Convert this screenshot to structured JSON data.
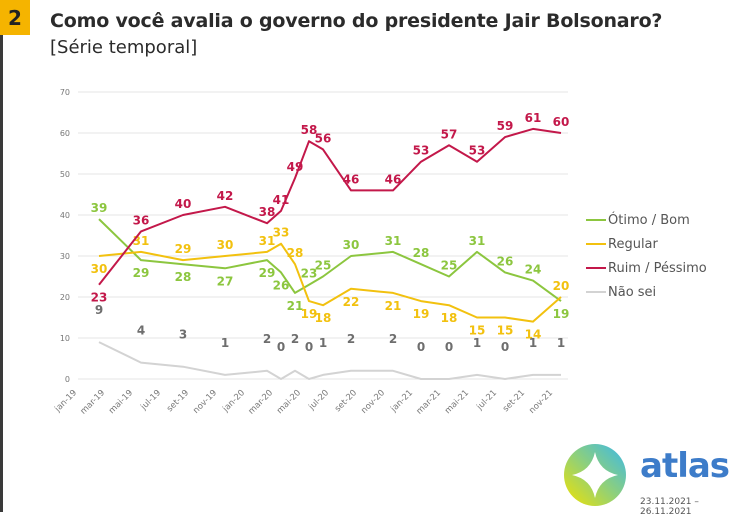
{
  "header": {
    "number": "2",
    "title": "Como você avalia o governo do presidente Jair Bolsonaro?",
    "subtitle": "[Série temporal]"
  },
  "chart_data": {
    "type": "line",
    "title": "",
    "xlabel": "",
    "ylabel": "",
    "ylim": [
      0,
      70
    ],
    "yticks": [
      0,
      10,
      20,
      30,
      40,
      50,
      60,
      70
    ],
    "xtick_labels": [
      "jan-19",
      "mar-19",
      "mai-19",
      "jul-19",
      "set-19",
      "nov-19",
      "jan-20",
      "mar-20",
      "mai-20",
      "jul-20",
      "set-20",
      "nov-20",
      "jan-21",
      "mar-21",
      "mai-21",
      "jul-21",
      "set-21",
      "nov-21"
    ],
    "xlim": [
      "2019-01",
      "2021-11"
    ],
    "x": [
      "2019-02",
      "2019-05",
      "2019-08",
      "2019-11",
      "2020-02",
      "2020-03",
      "2020-04",
      "2020-05",
      "2020-06",
      "2020-08",
      "2020-11",
      "2021-01",
      "2021-03",
      "2021-05",
      "2021-07",
      "2021-09",
      "2021-11"
    ],
    "grid": true,
    "legend_position": "right",
    "series": [
      {
        "name": "Ótimo / Bom",
        "color": "#8cc63f",
        "values": [
          39,
          29,
          28,
          27,
          29,
          26,
          21,
          23,
          25,
          30,
          31,
          28,
          25,
          31,
          26,
          24,
          19
        ]
      },
      {
        "name": "Regular",
        "color": "#f2c10f",
        "values": [
          30,
          31,
          29,
          30,
          31,
          33,
          28,
          19,
          18,
          22,
          21,
          19,
          18,
          15,
          15,
          14,
          20
        ]
      },
      {
        "name": "Ruim / Péssimo",
        "color": "#c3184a",
        "values": [
          23,
          36,
          40,
          42,
          38,
          41,
          49,
          58,
          56,
          46,
          46,
          53,
          57,
          53,
          59,
          61,
          60
        ]
      },
      {
        "name": "Não sei",
        "color": "#d3d3d3",
        "values": [
          9,
          4,
          3,
          1,
          2,
          0,
          2,
          0,
          1,
          2,
          2,
          0,
          0,
          1,
          0,
          1,
          1
        ]
      }
    ]
  },
  "brand": {
    "name": "atlas",
    "dates": "23.11.2021 – 26.11.2021"
  }
}
